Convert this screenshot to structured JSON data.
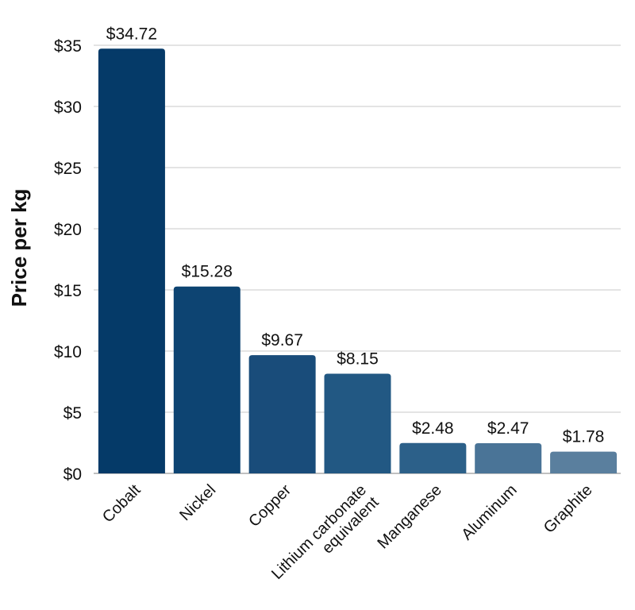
{
  "chart_data": {
    "type": "bar",
    "title": "",
    "xlabel": "",
    "ylabel": "Price per kg",
    "ylim": [
      0,
      35
    ],
    "yticks": [
      {
        "value": 0,
        "label": "$0"
      },
      {
        "value": 5,
        "label": "$5"
      },
      {
        "value": 10,
        "label": "$10"
      },
      {
        "value": 15,
        "label": "$15"
      },
      {
        "value": 20,
        "label": "$20"
      },
      {
        "value": 25,
        "label": "$25"
      },
      {
        "value": 30,
        "label": "$30"
      },
      {
        "value": 35,
        "label": "$35"
      }
    ],
    "grid": true,
    "categories": [
      [
        "Cobalt"
      ],
      [
        "Nickel"
      ],
      [
        "Copper"
      ],
      [
        "Lithium carbonate",
        "equivalent"
      ],
      [
        "Manganese"
      ],
      [
        "Aluminum"
      ],
      [
        "Graphite"
      ]
    ],
    "values": [
      34.72,
      15.28,
      9.67,
      8.15,
      2.48,
      2.47,
      1.78
    ],
    "value_labels": [
      "$34.72",
      "$15.28",
      "$9.67",
      "$8.15",
      "$2.48",
      "$2.47",
      "$1.78"
    ],
    "colors": [
      "#053a68",
      "#0d4472",
      "#194c7a",
      "#225883",
      "#2c6089",
      "#4a7497",
      "#5a7f9e"
    ]
  }
}
